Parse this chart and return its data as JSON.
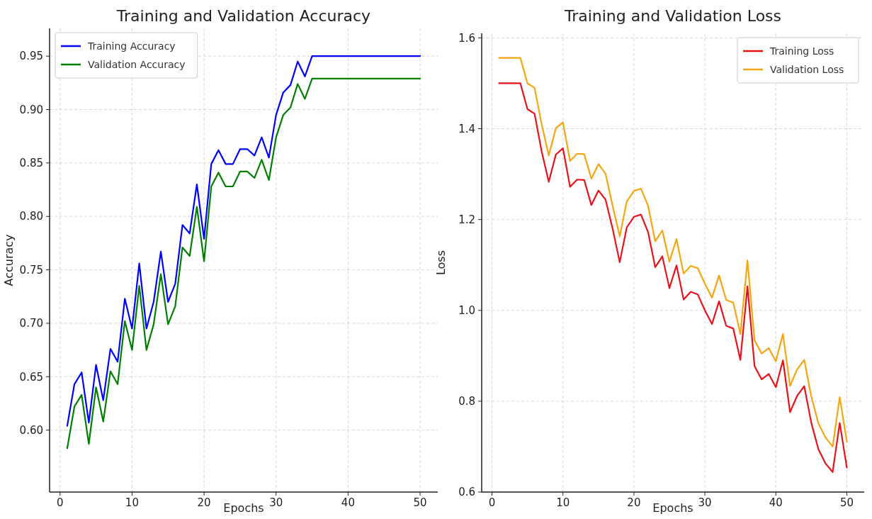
{
  "chart_data": [
    {
      "type": "line",
      "title": "Training and Validation Accuracy",
      "xlabel": "Epochs",
      "ylabel": "Accuracy",
      "x": [
        1,
        2,
        3,
        4,
        5,
        6,
        7,
        8,
        9,
        10,
        11,
        12,
        13,
        14,
        15,
        16,
        17,
        18,
        19,
        20,
        21,
        22,
        23,
        24,
        25,
        26,
        27,
        28,
        29,
        30,
        31,
        32,
        33,
        34,
        35,
        36,
        37,
        38,
        39,
        40,
        41,
        42,
        43,
        44,
        45,
        46,
        47,
        48,
        49,
        50
      ],
      "series": [
        {
          "name": "Training Accuracy",
          "color": "#0000ff",
          "values": [
            0.604,
            0.643,
            0.654,
            0.607,
            0.661,
            0.628,
            0.676,
            0.664,
            0.723,
            0.695,
            0.756,
            0.695,
            0.72,
            0.767,
            0.72,
            0.737,
            0.792,
            0.784,
            0.83,
            0.779,
            0.849,
            0.862,
            0.849,
            0.849,
            0.863,
            0.863,
            0.857,
            0.874,
            0.855,
            0.895,
            0.916,
            0.923,
            0.945,
            0.931,
            0.95,
            0.95,
            0.95,
            0.95,
            0.95,
            0.95,
            0.95,
            0.95,
            0.95,
            0.95,
            0.95,
            0.95,
            0.95,
            0.95,
            0.95,
            0.95
          ]
        },
        {
          "name": "Validation Accuracy",
          "color": "#008000",
          "values": [
            0.583,
            0.622,
            0.633,
            0.587,
            0.64,
            0.608,
            0.655,
            0.643,
            0.702,
            0.675,
            0.735,
            0.675,
            0.699,
            0.746,
            0.699,
            0.716,
            0.771,
            0.763,
            0.809,
            0.758,
            0.828,
            0.841,
            0.828,
            0.828,
            0.842,
            0.842,
            0.836,
            0.853,
            0.834,
            0.874,
            0.895,
            0.902,
            0.924,
            0.91,
            0.929,
            0.929,
            0.929,
            0.929,
            0.929,
            0.929,
            0.929,
            0.929,
            0.929,
            0.929,
            0.929,
            0.929,
            0.929,
            0.929,
            0.929,
            0.929
          ]
        }
      ],
      "xlim": [
        -1.45,
        52.45
      ],
      "xticks": [
        0,
        10,
        20,
        30,
        40,
        50
      ],
      "ylim": [
        0.542,
        0.976
      ],
      "yticks": [
        {
          "value": 0.6,
          "label": "0.60"
        },
        {
          "value": 0.65,
          "label": "0.65"
        },
        {
          "value": 0.7,
          "label": "0.70"
        },
        {
          "value": 0.75,
          "label": "0.75"
        },
        {
          "value": 0.8,
          "label": "0.80"
        },
        {
          "value": 0.85,
          "label": "0.85"
        },
        {
          "value": 0.9,
          "label": "0.90"
        },
        {
          "value": 0.95,
          "label": "0.95"
        }
      ],
      "grid": true,
      "legend": "top left"
    },
    {
      "type": "line",
      "title": "Training and Validation Loss",
      "xlabel": "Epochs",
      "ylabel": "Loss",
      "x": [
        1,
        2,
        3,
        4,
        5,
        6,
        7,
        8,
        9,
        10,
        11,
        12,
        13,
        14,
        15,
        16,
        17,
        18,
        19,
        20,
        21,
        22,
        23,
        24,
        25,
        26,
        27,
        28,
        29,
        30,
        31,
        32,
        33,
        34,
        35,
        36,
        37,
        38,
        39,
        40,
        41,
        42,
        43,
        44,
        45,
        46,
        47,
        48,
        49,
        50
      ],
      "series": [
        {
          "name": "Training Loss",
          "color": "#e8121b",
          "values": [
            1.5,
            1.5,
            1.5,
            1.5,
            1.443,
            1.433,
            1.35,
            1.283,
            1.343,
            1.357,
            1.272,
            1.288,
            1.287,
            1.232,
            1.264,
            1.244,
            1.18,
            1.106,
            1.183,
            1.206,
            1.211,
            1.172,
            1.095,
            1.119,
            1.049,
            1.099,
            1.024,
            1.041,
            1.035,
            1.0,
            0.97,
            1.02,
            0.966,
            0.96,
            0.891,
            1.053,
            0.877,
            0.848,
            0.86,
            0.831,
            0.89,
            0.776,
            0.812,
            0.833,
            0.752,
            0.694,
            0.663,
            0.644,
            0.752,
            0.654
          ]
        },
        {
          "name": "Validation Loss",
          "color": "#f5a50f",
          "values": [
            1.556,
            1.556,
            1.556,
            1.556,
            1.5,
            1.49,
            1.41,
            1.341,
            1.401,
            1.414,
            1.329,
            1.345,
            1.344,
            1.29,
            1.322,
            1.301,
            1.23,
            1.163,
            1.24,
            1.263,
            1.268,
            1.23,
            1.152,
            1.176,
            1.107,
            1.157,
            1.081,
            1.098,
            1.093,
            1.059,
            1.028,
            1.077,
            1.023,
            1.017,
            0.948,
            1.11,
            0.934,
            0.905,
            0.917,
            0.888,
            0.948,
            0.834,
            0.87,
            0.891,
            0.81,
            0.751,
            0.72,
            0.7,
            0.809,
            0.711
          ]
        }
      ],
      "xlim": [
        -1.45,
        52.45
      ],
      "xticks": [
        0,
        10,
        20,
        30,
        40,
        50
      ],
      "ylim": [
        0.6,
        1.61
      ],
      "yticks": [
        {
          "value": 0.6,
          "label": "0.6"
        },
        {
          "value": 0.8,
          "label": "0.8"
        },
        {
          "value": 1.0,
          "label": "1.0"
        },
        {
          "value": 1.2,
          "label": "1.2"
        },
        {
          "value": 1.4,
          "label": "1.4"
        },
        {
          "value": 1.6,
          "label": "1.6"
        }
      ],
      "grid": true,
      "legend": "top right"
    }
  ]
}
